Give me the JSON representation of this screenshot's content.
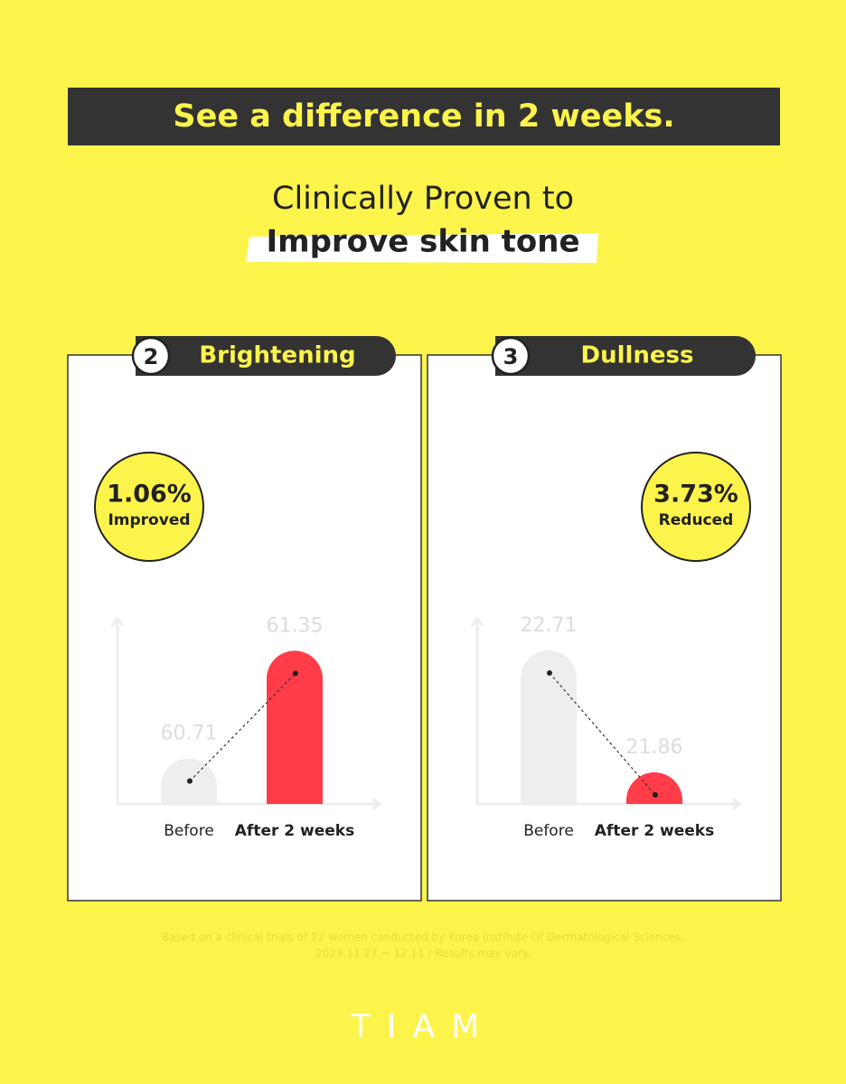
{
  "header": {
    "banner": "See a difference in 2 weeks.",
    "subtitle": "Clinically Proven to",
    "highlight": "Improve skin tone"
  },
  "chart_data": [
    {
      "type": "bar",
      "badge": "2",
      "title": "Brightening",
      "annotations": [
        "1.06%",
        "Improved"
      ],
      "categories": [
        "Before",
        "After 2 weeks"
      ],
      "values": [
        60.71,
        61.35
      ],
      "colors": [
        "#eeeeee",
        "#ff3c48"
      ],
      "ylim": [
        60.44,
        61.54
      ]
    },
    {
      "type": "bar",
      "badge": "3",
      "title": "Dullness",
      "annotations": [
        "3.73%",
        "Reduced"
      ],
      "categories": [
        "Before",
        "After 2 weeks"
      ],
      "values": [
        22.71,
        21.86
      ],
      "colors": [
        "#eeeeee",
        "#ff3c48"
      ],
      "ylim": [
        21.64,
        22.93
      ]
    }
  ],
  "footnote": [
    "Based on a clinical trials of 22 women conducted by Korea Institute Of Dermatological Sciences.",
    "2023.11.27 ~ 12.11 / Results may vary."
  ],
  "logo": "TIAM"
}
